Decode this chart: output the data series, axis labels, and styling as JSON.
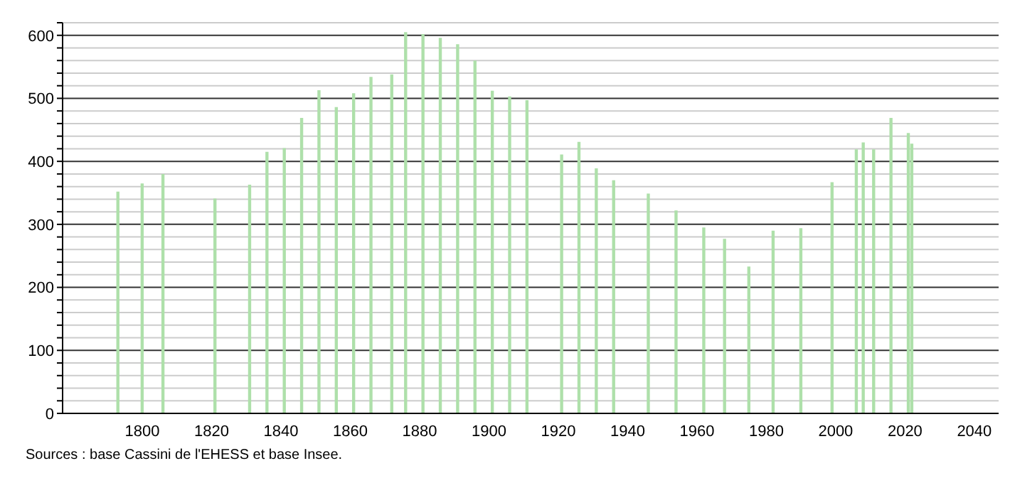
{
  "chart_data": {
    "type": "bar",
    "x": [
      1793,
      1800,
      1806,
      1821,
      1831,
      1836,
      1841,
      1846,
      1851,
      1856,
      1861,
      1866,
      1872,
      1876,
      1881,
      1886,
      1891,
      1896,
      1901,
      1906,
      1911,
      1921,
      1926,
      1931,
      1936,
      1946,
      1954,
      1962,
      1968,
      1975,
      1982,
      1990,
      1999,
      2006,
      2008,
      2011,
      2016,
      2021,
      2022
    ],
    "values": [
      352,
      365,
      380,
      341,
      363,
      415,
      421,
      469,
      513,
      486,
      508,
      534,
      538,
      605,
      602,
      596,
      586,
      560,
      512,
      503,
      497,
      411,
      431,
      389,
      370,
      349,
      322,
      295,
      277,
      233,
      290,
      294,
      367,
      419,
      430,
      419,
      469,
      445,
      428
    ],
    "color": "#aee0aa",
    "xlim": [
      1777,
      2047
    ],
    "xticks": [
      1800,
      1820,
      1840,
      1860,
      1880,
      1900,
      1920,
      1940,
      1960,
      1980,
      2000,
      2020,
      2040
    ],
    "ylim": [
      0,
      620
    ],
    "yticks": [
      0,
      {
        "value": 20,
        "label": null
      },
      {
        "value": 40,
        "label": null
      },
      {
        "value": 60,
        "label": null
      },
      {
        "value": 80,
        "label": null
      },
      100,
      {
        "value": 120,
        "label": null
      },
      {
        "value": 140,
        "label": null
      },
      {
        "value": 160,
        "label": null
      },
      {
        "value": 180,
        "label": null
      },
      200,
      {
        "value": 220,
        "label": null
      },
      {
        "value": 240,
        "label": null
      },
      {
        "value": 260,
        "label": null
      },
      {
        "value": 280,
        "label": null
      },
      300,
      {
        "value": 320,
        "label": null
      },
      {
        "value": 340,
        "label": null
      },
      {
        "value": 360,
        "label": null
      },
      {
        "value": 380,
        "label": null
      },
      400,
      {
        "value": 420,
        "label": null
      },
      {
        "value": 440,
        "label": null
      },
      {
        "value": 460,
        "label": null
      },
      {
        "value": 480,
        "label": null
      },
      500,
      {
        "value": 520,
        "label": null
      },
      {
        "value": 540,
        "label": null
      },
      {
        "value": 560,
        "label": null
      },
      {
        "value": 580,
        "label": null
      },
      600,
      {
        "value": 620,
        "label": null
      }
    ],
    "grid": "y",
    "annotations": [
      "Sources : base Cassini de l'EHESS et base Insee."
    ]
  }
}
